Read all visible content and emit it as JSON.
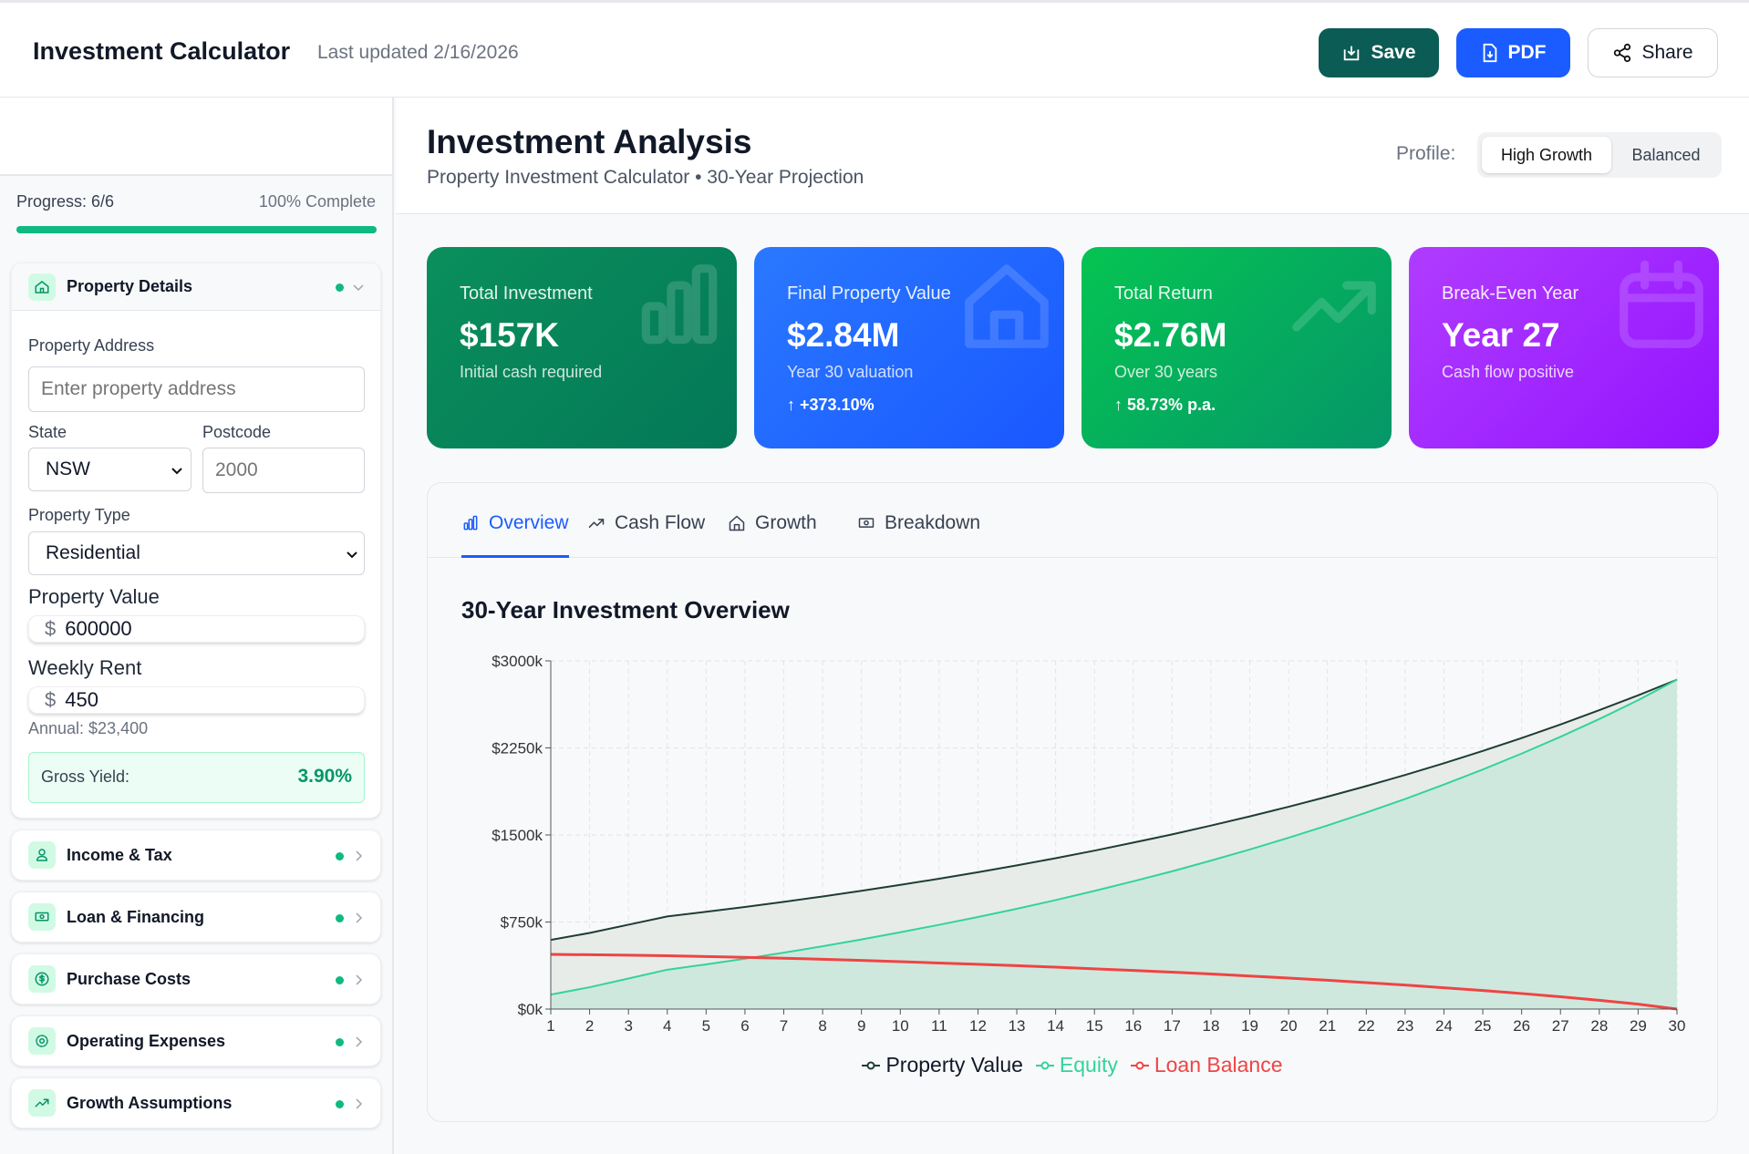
{
  "header": {
    "title": "Investment Calculator",
    "last_updated": "Last updated 2/16/2026",
    "save": "Save",
    "pdf": "PDF",
    "share": "Share"
  },
  "sidebar": {
    "progress_label": "Progress: 6/6",
    "progress_pct_label": "100% Complete",
    "progress": 100,
    "property_details": {
      "title": "Property Details",
      "address_label": "Property Address",
      "address_placeholder": "Enter property address",
      "address_value": "",
      "state_label": "State",
      "state_value": "NSW",
      "postcode_label": "Postcode",
      "postcode_placeholder": "2000",
      "type_label": "Property Type",
      "type_value": "Residential",
      "value_label": "Property Value",
      "value_currency": "$",
      "value_value": "600000",
      "rent_label": "Weekly Rent",
      "rent_currency": "$",
      "rent_value": "450",
      "annual_rent": "Annual: $23,400",
      "yield_label": "Gross Yield:",
      "yield_value": "3.90%"
    },
    "sections": [
      {
        "title": "Income & Tax",
        "icon": "user-icon"
      },
      {
        "title": "Loan & Financing",
        "icon": "banknote-icon"
      },
      {
        "title": "Purchase Costs",
        "icon": "dollar-circle-icon"
      },
      {
        "title": "Operating Expenses",
        "icon": "gear-icon"
      },
      {
        "title": "Growth Assumptions",
        "icon": "trending-up-icon"
      }
    ]
  },
  "main": {
    "title": "Investment Analysis",
    "subtitle": "Property Investment Calculator • 30-Year Projection",
    "profile_label": "Profile:",
    "profiles": [
      "High Growth",
      "Balanced"
    ],
    "active_profile": "High Growth",
    "cards": [
      {
        "label": "Total Investment",
        "value": "$157K",
        "sub": "Initial cash required",
        "delta": "",
        "icon": "bar-chart-icon",
        "color_from": "#0a8f5c",
        "color_to": "#047857"
      },
      {
        "label": "Final Property Value",
        "value": "$2.84M",
        "sub": "Year 30 valuation",
        "delta": "+373.10%",
        "icon": "home-icon",
        "color_from": "#2a78ff",
        "color_to": "#1958ff"
      },
      {
        "label": "Total Return",
        "value": "$2.76M",
        "sub": "Over 30 years",
        "delta": "58.73% p.a.",
        "icon": "trending-up-icon",
        "color_from": "#05c452",
        "color_to": "#059669"
      },
      {
        "label": "Break-Even Year",
        "value": "Year 27",
        "sub": "Cash flow positive",
        "delta": "",
        "icon": "calendar-icon",
        "color_from": "#b03cff",
        "color_to": "#9314ff"
      }
    ],
    "tabs": [
      {
        "label": "Overview",
        "icon": "bar-chart-icon"
      },
      {
        "label": "Cash Flow",
        "icon": "trending-up-icon"
      },
      {
        "label": "Growth",
        "icon": "home-icon"
      },
      {
        "label": "Breakdown",
        "icon": "banknote-icon"
      }
    ],
    "active_tab": "Overview"
  },
  "chart_data": {
    "type": "area",
    "title": "30-Year Investment Overview",
    "xlabel": "",
    "ylabel": "",
    "x": [
      1,
      2,
      3,
      4,
      5,
      6,
      7,
      8,
      9,
      10,
      11,
      12,
      13,
      14,
      15,
      16,
      17,
      18,
      19,
      20,
      21,
      22,
      23,
      24,
      25,
      26,
      27,
      28,
      29,
      30
    ],
    "ylim": [
      0,
      3000
    ],
    "yticks": [
      "$0k",
      "$750k",
      "$1500k",
      "$2250k",
      "$3000k"
    ],
    "ytick_values": [
      0,
      750,
      1500,
      2250,
      3000
    ],
    "grid": true,
    "legend": "bottom",
    "series": [
      {
        "name": "Property Value",
        "color": "#1f3d33",
        "fill": "#e6ebe8",
        "values": [
          596,
          656,
          727,
          798,
          838,
          880,
          924,
          970,
          1019,
          1070,
          1123,
          1179,
          1238,
          1300,
          1365,
          1434,
          1505,
          1581,
          1660,
          1743,
          1830,
          1921,
          2017,
          2118,
          2224,
          2335,
          2452,
          2575,
          2703,
          2838
        ]
      },
      {
        "name": "Equity",
        "color": "#34d399",
        "fill": "#cde8dd",
        "values": [
          125,
          188,
          263,
          339,
          385,
          434,
          486,
          541,
          600,
          662,
          726,
          793,
          864,
          939,
          1018,
          1101,
          1187,
          1279,
          1375,
          1476,
          1582,
          1693,
          1810,
          1934,
          2064,
          2201,
          2346,
          2499,
          2661,
          2838
        ]
      },
      {
        "name": "Loan Balance",
        "color": "#ef4444",
        "fill": "",
        "values": [
          471,
          468,
          464,
          459,
          453,
          446,
          438,
          429,
          419,
          408,
          397,
          386,
          374,
          361,
          347,
          333,
          318,
          302,
          285,
          267,
          248,
          228,
          207,
          184,
          160,
          134,
          106,
          76,
          42,
          0
        ]
      }
    ]
  }
}
